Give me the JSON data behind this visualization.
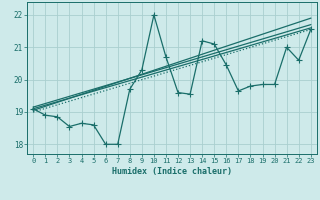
{
  "xlabel": "Humidex (Indice chaleur)",
  "bg_color": "#ceeaea",
  "grid_color": "#aacfcf",
  "line_color": "#1a6e6a",
  "xlim": [
    -0.5,
    23.5
  ],
  "ylim": [
    17.7,
    22.4
  ],
  "xticks": [
    0,
    1,
    2,
    3,
    4,
    5,
    6,
    7,
    8,
    9,
    10,
    11,
    12,
    13,
    14,
    15,
    16,
    17,
    18,
    19,
    20,
    21,
    22,
    23
  ],
  "yticks": [
    18,
    19,
    20,
    21,
    22
  ],
  "series": [
    {
      "x": [
        0,
        1,
        2,
        3,
        4,
        5,
        6,
        7,
        8,
        9,
        10,
        11,
        12,
        13,
        14,
        15,
        16,
        17,
        18,
        19,
        20,
        21,
        22,
        23
      ],
      "y": [
        19.1,
        18.9,
        18.85,
        18.55,
        18.65,
        18.6,
        18.0,
        18.0,
        19.7,
        20.3,
        22.0,
        20.7,
        19.6,
        19.55,
        21.2,
        21.1,
        20.45,
        19.65,
        19.8,
        19.85,
        19.85,
        21.0,
        20.6,
        21.55
      ],
      "marker": true,
      "linestyle": "solid"
    },
    {
      "x": [
        0,
        23
      ],
      "y": [
        19.0,
        21.55
      ],
      "marker": false,
      "linestyle": "dotted"
    },
    {
      "x": [
        0,
        23
      ],
      "y": [
        19.1,
        21.6
      ],
      "marker": false,
      "linestyle": "solid"
    },
    {
      "x": [
        0,
        23
      ],
      "y": [
        19.15,
        21.7
      ],
      "marker": false,
      "linestyle": "solid"
    },
    {
      "x": [
        0,
        23
      ],
      "y": [
        19.05,
        21.9
      ],
      "marker": false,
      "linestyle": "solid"
    }
  ],
  "marker_style": "+",
  "markersize": 4,
  "linewidth": 0.9,
  "tick_fontsize": 5.0,
  "xlabel_fontsize": 6.0
}
